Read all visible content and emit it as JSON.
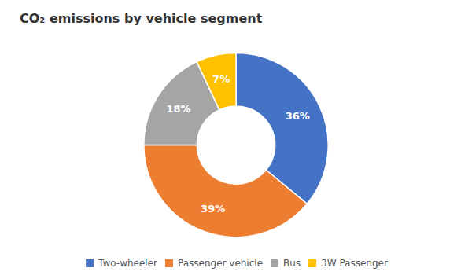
{
  "chart_data": {
    "type": "pie",
    "title": "CO₂ emissions by vehicle segment",
    "categories": [
      "Two-wheeler",
      "Passenger vehicle",
      "Bus",
      "3W Passenger"
    ],
    "values": [
      36,
      39,
      18,
      7
    ],
    "value_labels": [
      "36%",
      "39%",
      "18%",
      "7%"
    ],
    "colors": [
      "#4472C4",
      "#ED7D31",
      "#A5A5A5",
      "#FFC000"
    ],
    "data_labels": true,
    "legend": "bottom"
  }
}
